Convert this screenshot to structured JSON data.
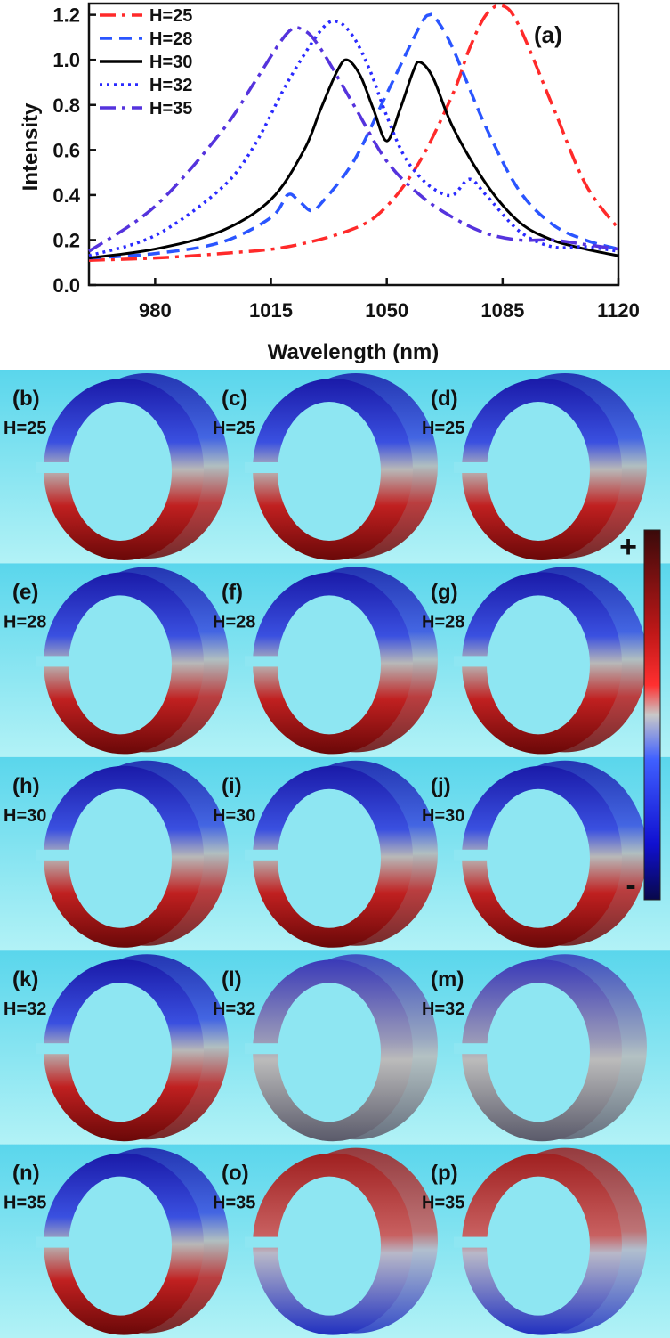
{
  "chart_data": {
    "type": "line",
    "panel_label": "(a)",
    "xlabel": "Wavelength (nm)",
    "ylabel": "Intensity",
    "xlim": [
      960,
      1120
    ],
    "ylim": [
      0.0,
      1.25
    ],
    "xticks": [
      "980",
      "1015",
      "1050",
      "1085",
      "1120"
    ],
    "yticks": [
      "0.0",
      "0.2",
      "0.4",
      "0.6",
      "0.8",
      "1.0",
      "1.2"
    ],
    "legend_position": "top-left",
    "series": [
      {
        "name": "H=25",
        "color": "#ff2a2a",
        "dash": "dash-dot",
        "x": [
          960,
          980,
          1000,
          1020,
          1040,
          1050,
          1060,
          1070,
          1075,
          1080,
          1085,
          1090,
          1100,
          1110,
          1120
        ],
        "y": [
          0.11,
          0.12,
          0.14,
          0.17,
          0.25,
          0.35,
          0.55,
          0.85,
          1.05,
          1.2,
          1.24,
          1.15,
          0.8,
          0.45,
          0.25
        ]
      },
      {
        "name": "H=28",
        "color": "#2a55ff",
        "dash": "dash",
        "x": [
          960,
          980,
          1000,
          1015,
          1020,
          1023,
          1027,
          1030,
          1040,
          1050,
          1060,
          1063,
          1065,
          1070,
          1080,
          1090,
          1100,
          1110,
          1120
        ],
        "y": [
          0.12,
          0.14,
          0.19,
          0.3,
          0.4,
          0.38,
          0.33,
          0.36,
          0.55,
          0.85,
          1.15,
          1.2,
          1.18,
          1.05,
          0.7,
          0.42,
          0.27,
          0.2,
          0.16
        ]
      },
      {
        "name": "H=30",
        "color": "#000000",
        "dash": "solid",
        "x": [
          960,
          980,
          1000,
          1015,
          1025,
          1030,
          1035,
          1038,
          1042,
          1046,
          1050,
          1054,
          1058,
          1060,
          1064,
          1070,
          1080,
          1090,
          1100,
          1110,
          1120
        ],
        "y": [
          0.12,
          0.16,
          0.24,
          0.38,
          0.6,
          0.78,
          0.95,
          1.0,
          0.93,
          0.78,
          0.64,
          0.78,
          0.95,
          0.99,
          0.92,
          0.7,
          0.45,
          0.28,
          0.2,
          0.16,
          0.13
        ]
      },
      {
        "name": "H=32",
        "color": "#2a2aff",
        "dash": "dot",
        "x": [
          960,
          980,
          1000,
          1010,
          1020,
          1030,
          1035,
          1040,
          1045,
          1050,
          1055,
          1060,
          1065,
          1070,
          1075,
          1080,
          1090,
          1100,
          1110,
          1120
        ],
        "y": [
          0.13,
          0.22,
          0.43,
          0.62,
          0.9,
          1.13,
          1.17,
          1.1,
          0.95,
          0.75,
          0.58,
          0.48,
          0.42,
          0.4,
          0.47,
          0.4,
          0.24,
          0.17,
          0.17,
          0.15
        ]
      },
      {
        "name": "H=35",
        "color": "#5533dd",
        "dash": "dash-dot",
        "x": [
          960,
          980,
          1000,
          1010,
          1020,
          1025,
          1030,
          1040,
          1050,
          1060,
          1070,
          1080,
          1090,
          1100,
          1110,
          1120
        ],
        "y": [
          0.15,
          0.35,
          0.68,
          0.9,
          1.12,
          1.13,
          1.05,
          0.8,
          0.55,
          0.4,
          0.3,
          0.23,
          0.2,
          0.2,
          0.18,
          0.16
        ]
      }
    ]
  },
  "field_panels": {
    "rows": [
      {
        "h_label": "H=25",
        "labels": [
          "(b)",
          "(c)",
          "(d)"
        ]
      },
      {
        "h_label": "H=28",
        "labels": [
          "(e)",
          "(f)",
          "(g)"
        ]
      },
      {
        "h_label": "H=30",
        "labels": [
          "(h)",
          "(i)",
          "(j)"
        ]
      },
      {
        "h_label": "H=32",
        "labels": [
          "(k)",
          "(l)",
          "(m)"
        ]
      },
      {
        "h_label": "H=35",
        "labels": [
          "(n)",
          "(o)",
          "(p)"
        ]
      }
    ],
    "colorbar": {
      "max_label": "+",
      "min_label": "-"
    },
    "colors": {
      "positive": "#8a1010",
      "neutral": "#b8b8b8",
      "negative": "#1010c8",
      "background": "#5ad6ec"
    }
  }
}
